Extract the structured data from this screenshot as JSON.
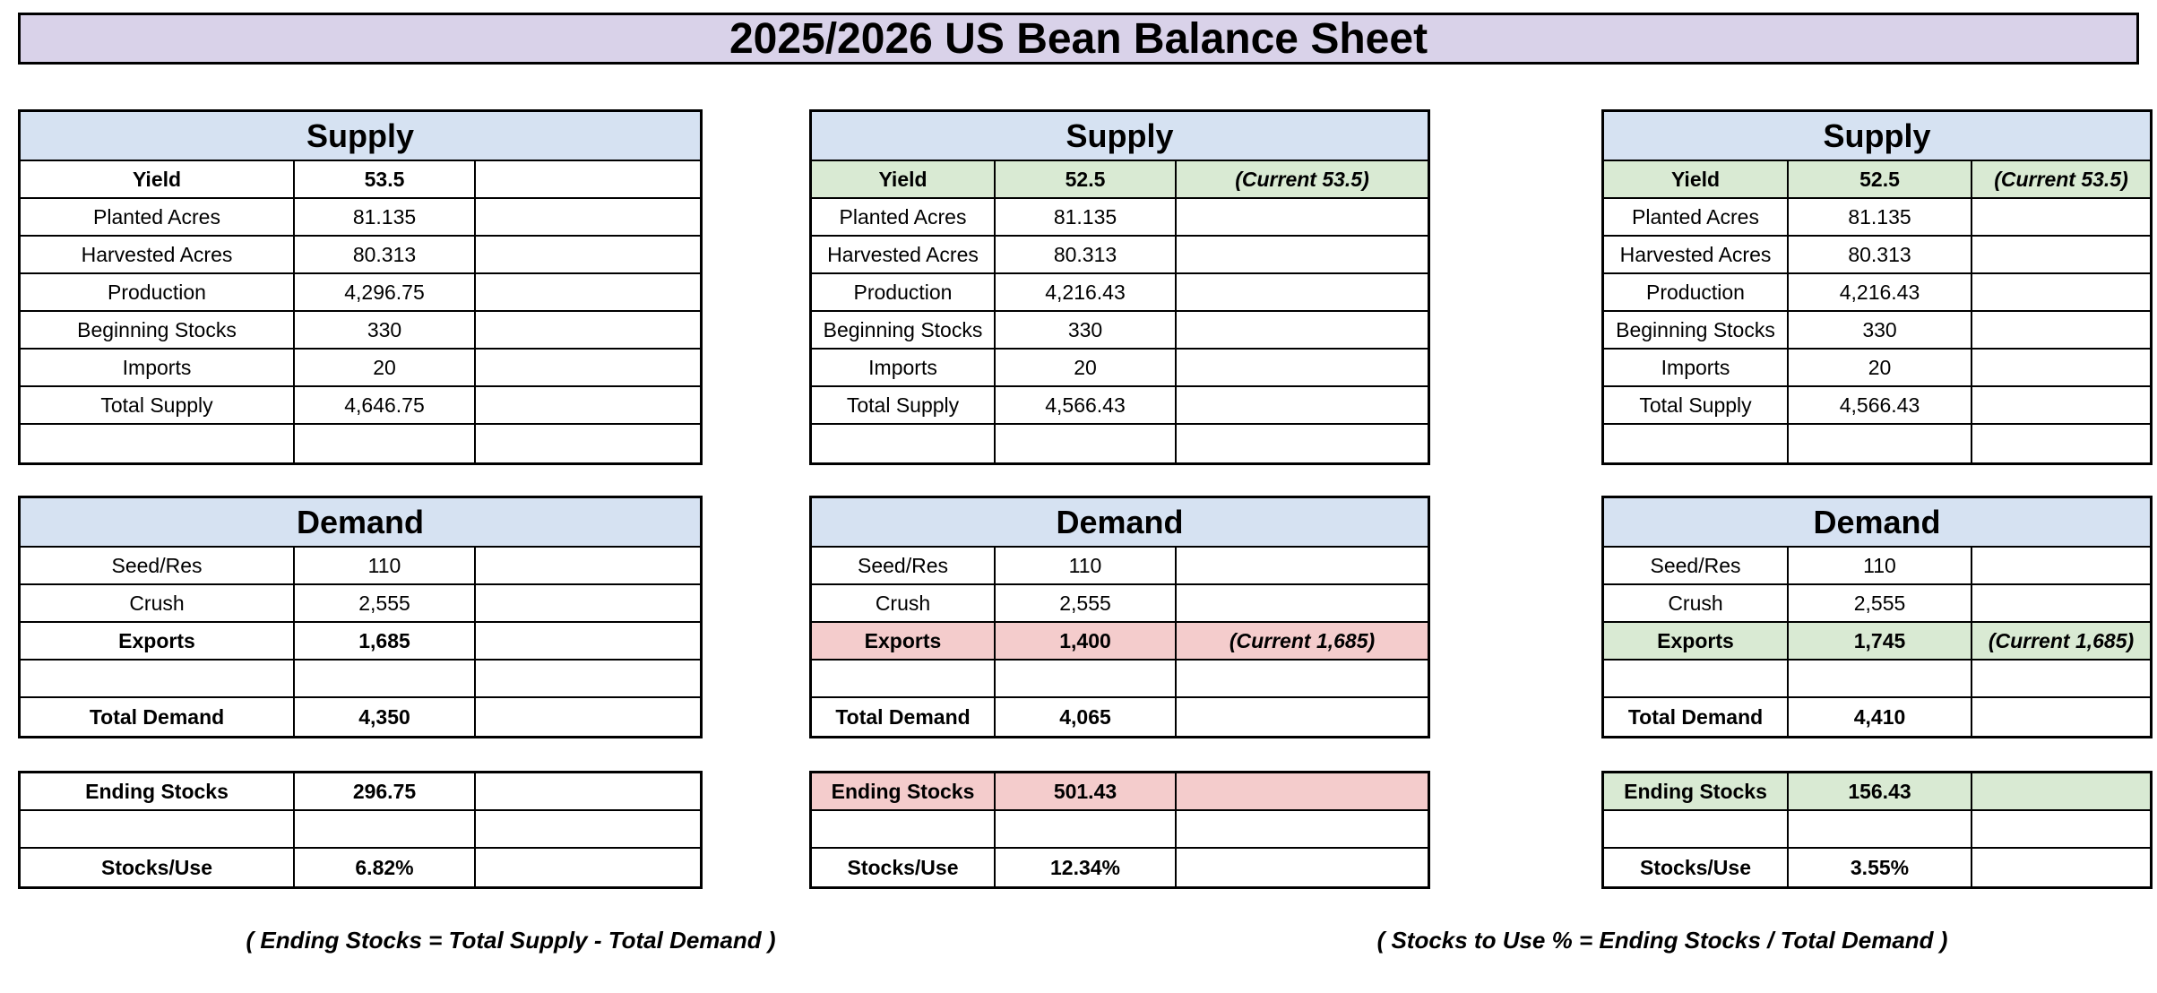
{
  "title": "2025/2026 US Bean Balance Sheet",
  "colors": {
    "title_bg": "#d9d2e9",
    "header_bg": "#d6e2f2",
    "green": "#d9ead3",
    "pink": "#f4cccc",
    "border": "#000000"
  },
  "notes": [
    {
      "text": "( Ending Stocks = Total Supply - Total Demand )"
    },
    {
      "text": "( Stocks to Use % = Ending Stocks / Total Demand )"
    }
  ],
  "scenarios": [
    {
      "supply": {
        "header": "Supply",
        "rows": [
          {
            "cells": [
              "Yield",
              "53.5",
              ""
            ],
            "bold": true,
            "bg": "none"
          },
          {
            "cells": [
              "Planted Acres",
              "81.135",
              ""
            ],
            "bold": false,
            "bg": "none"
          },
          {
            "cells": [
              "Harvested Acres",
              "80.313",
              ""
            ],
            "bold": false,
            "bg": "none"
          },
          {
            "cells": [
              "Production",
              "4,296.75",
              ""
            ],
            "bold": false,
            "bg": "none"
          },
          {
            "cells": [
              "Beginning Stocks",
              "330",
              ""
            ],
            "bold": false,
            "bg": "none"
          },
          {
            "cells": [
              "Imports",
              "20",
              ""
            ],
            "bold": false,
            "bg": "none"
          },
          {
            "cells": [
              "Total Supply",
              "4,646.75",
              ""
            ],
            "bold": false,
            "bg": "none"
          },
          {
            "cells": [
              "",
              "",
              ""
            ],
            "bold": false,
            "bg": "none"
          }
        ]
      },
      "demand": {
        "header": "Demand",
        "rows": [
          {
            "cells": [
              "Seed/Res",
              "110",
              ""
            ],
            "bold": false,
            "bg": "none"
          },
          {
            "cells": [
              "Crush",
              "2,555",
              ""
            ],
            "bold": false,
            "bg": "none"
          },
          {
            "cells": [
              "Exports",
              "1,685",
              ""
            ],
            "bold": true,
            "bg": "none"
          },
          {
            "cells": [
              "",
              "",
              ""
            ],
            "bold": false,
            "bg": "none"
          },
          {
            "cells": [
              "Total Demand",
              "4,350",
              ""
            ],
            "bold": true,
            "bg": "none"
          }
        ]
      },
      "stocks": {
        "header": "",
        "rows": [
          {
            "cells": [
              "Ending Stocks",
              "296.75",
              ""
            ],
            "bold": true,
            "bg": "none"
          },
          {
            "cells": [
              "",
              "",
              ""
            ],
            "bold": false,
            "bg": "none"
          },
          {
            "cells": [
              "Stocks/Use",
              "6.82%",
              ""
            ],
            "bold": true,
            "bg": "none"
          }
        ]
      }
    },
    {
      "supply": {
        "header": "Supply",
        "rows": [
          {
            "cells": [
              "Yield",
              "52.5",
              "(Current 53.5)"
            ],
            "bold": true,
            "bg": "green"
          },
          {
            "cells": [
              "Planted Acres",
              "81.135",
              ""
            ],
            "bold": false,
            "bg": "none"
          },
          {
            "cells": [
              "Harvested Acres",
              "80.313",
              ""
            ],
            "bold": false,
            "bg": "none"
          },
          {
            "cells": [
              "Production",
              "4,216.43",
              ""
            ],
            "bold": false,
            "bg": "none"
          },
          {
            "cells": [
              "Beginning Stocks",
              "330",
              ""
            ],
            "bold": false,
            "bg": "none"
          },
          {
            "cells": [
              "Imports",
              "20",
              ""
            ],
            "bold": false,
            "bg": "none"
          },
          {
            "cells": [
              "Total Supply",
              "4,566.43",
              ""
            ],
            "bold": false,
            "bg": "none"
          },
          {
            "cells": [
              "",
              "",
              ""
            ],
            "bold": false,
            "bg": "none"
          }
        ]
      },
      "demand": {
        "header": "Demand",
        "rows": [
          {
            "cells": [
              "Seed/Res",
              "110",
              ""
            ],
            "bold": false,
            "bg": "none"
          },
          {
            "cells": [
              "Crush",
              "2,555",
              ""
            ],
            "bold": false,
            "bg": "none"
          },
          {
            "cells": [
              "Exports",
              "1,400",
              "(Current 1,685)"
            ],
            "bold": true,
            "bg": "pink"
          },
          {
            "cells": [
              "",
              "",
              ""
            ],
            "bold": false,
            "bg": "none"
          },
          {
            "cells": [
              "Total Demand",
              "4,065",
              ""
            ],
            "bold": true,
            "bg": "none"
          }
        ]
      },
      "stocks": {
        "header": "",
        "rows": [
          {
            "cells": [
              "Ending Stocks",
              "501.43",
              ""
            ],
            "bold": true,
            "bg": "pink"
          },
          {
            "cells": [
              "",
              "",
              ""
            ],
            "bold": false,
            "bg": "none"
          },
          {
            "cells": [
              "Stocks/Use",
              "12.34%",
              ""
            ],
            "bold": true,
            "bg": "none"
          }
        ]
      }
    },
    {
      "supply": {
        "header": "Supply",
        "rows": [
          {
            "cells": [
              "Yield",
              "52.5",
              "(Current 53.5)"
            ],
            "bold": true,
            "bg": "green"
          },
          {
            "cells": [
              "Planted Acres",
              "81.135",
              ""
            ],
            "bold": false,
            "bg": "none"
          },
          {
            "cells": [
              "Harvested Acres",
              "80.313",
              ""
            ],
            "bold": false,
            "bg": "none"
          },
          {
            "cells": [
              "Production",
              "4,216.43",
              ""
            ],
            "bold": false,
            "bg": "none"
          },
          {
            "cells": [
              "Beginning Stocks",
              "330",
              ""
            ],
            "bold": false,
            "bg": "none"
          },
          {
            "cells": [
              "Imports",
              "20",
              ""
            ],
            "bold": false,
            "bg": "none"
          },
          {
            "cells": [
              "Total Supply",
              "4,566.43",
              ""
            ],
            "bold": false,
            "bg": "none"
          },
          {
            "cells": [
              "",
              "",
              ""
            ],
            "bold": false,
            "bg": "none"
          }
        ]
      },
      "demand": {
        "header": "Demand",
        "rows": [
          {
            "cells": [
              "Seed/Res",
              "110",
              ""
            ],
            "bold": false,
            "bg": "none"
          },
          {
            "cells": [
              "Crush",
              "2,555",
              ""
            ],
            "bold": false,
            "bg": "none"
          },
          {
            "cells": [
              "Exports",
              "1,745",
              "(Current 1,685)"
            ],
            "bold": true,
            "bg": "green"
          },
          {
            "cells": [
              "",
              "",
              ""
            ],
            "bold": false,
            "bg": "none"
          },
          {
            "cells": [
              "Total Demand",
              "4,410",
              ""
            ],
            "bold": true,
            "bg": "none"
          }
        ]
      },
      "stocks": {
        "header": "",
        "rows": [
          {
            "cells": [
              "Ending Stocks",
              "156.43",
              ""
            ],
            "bold": true,
            "bg": "green"
          },
          {
            "cells": [
              "",
              "",
              ""
            ],
            "bold": false,
            "bg": "none"
          },
          {
            "cells": [
              "Stocks/Use",
              "3.55%",
              ""
            ],
            "bold": true,
            "bg": "none"
          }
        ]
      }
    }
  ]
}
